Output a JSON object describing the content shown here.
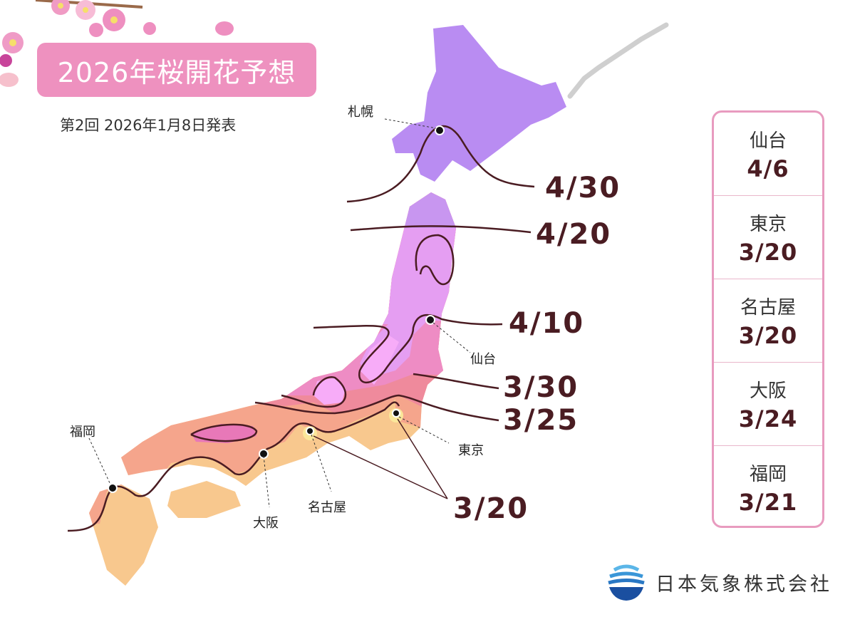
{
  "header": {
    "title": "2026年桜開花予想",
    "subtitle": "第2回  2026年1月8日発表"
  },
  "map": {
    "isoline_labels": [
      "4/30",
      "4/20",
      "4/10",
      "3/30",
      "3/25",
      "3/20"
    ],
    "cities": [
      "札幌",
      "仙台",
      "東京",
      "名古屋",
      "大阪",
      "福岡"
    ],
    "colors": {
      "hokkaido": "#b98cf2",
      "tohoku": "#e59ef2",
      "inner_light": "#f7acf8",
      "band_330": "#ee8cc4",
      "band_325": "#ef8a9c",
      "band_320": "#f5a58c",
      "south": "#f8c88e",
      "isoline": "#4a1c22"
    }
  },
  "panel": {
    "items": [
      {
        "city": "仙台",
        "date": "4/6"
      },
      {
        "city": "東京",
        "date": "3/20"
      },
      {
        "city": "名古屋",
        "date": "3/20"
      },
      {
        "city": "大阪",
        "date": "3/24"
      },
      {
        "city": "福岡",
        "date": "3/21"
      }
    ]
  },
  "footer": {
    "company": "日本気象株式会社"
  }
}
